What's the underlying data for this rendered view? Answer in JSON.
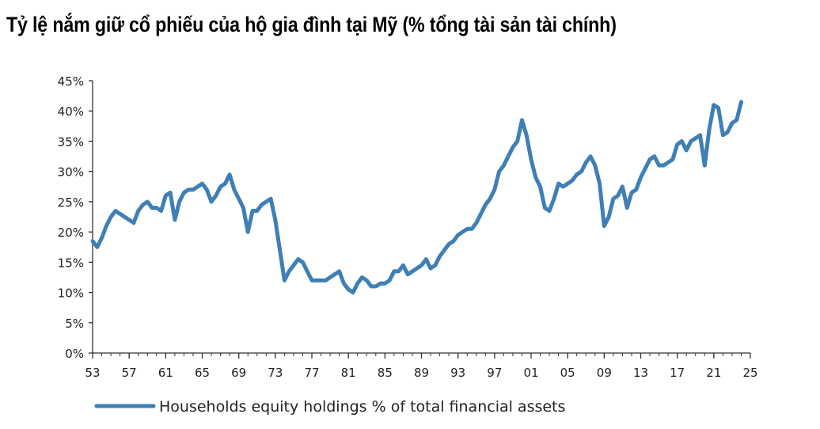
{
  "chart_data": {
    "type": "line",
    "title": "Tỷ lệ nắm giữ cổ phiếu của hộ gia đình tại Mỹ (% tổng tài sản tài chính)",
    "xlabel": "",
    "ylabel": "",
    "xlim": [
      1953,
      2025
    ],
    "ylim": [
      0,
      45
    ],
    "x_ticks": [
      1953,
      1957,
      1961,
      1965,
      1969,
      1973,
      1977,
      1981,
      1985,
      1989,
      1993,
      1997,
      2001,
      2005,
      2009,
      2013,
      2017,
      2021,
      2025
    ],
    "x_tick_labels": [
      "53",
      "57",
      "61",
      "65",
      "69",
      "73",
      "77",
      "81",
      "85",
      "89",
      "93",
      "97",
      "01",
      "05",
      "09",
      "13",
      "17",
      "21",
      "25"
    ],
    "y_ticks": [
      0,
      5,
      10,
      15,
      20,
      25,
      30,
      35,
      40,
      45
    ],
    "y_tick_labels": [
      "0%",
      "5%",
      "10%",
      "15%",
      "20%",
      "25%",
      "30%",
      "35%",
      "40%",
      "45%"
    ],
    "grid": false,
    "legend_position": "bottom-left",
    "color": "#3f7fb5",
    "series": [
      {
        "name": "Households equity holdings % of total financial assets",
        "x": [
          1953.0,
          1953.5,
          1954.0,
          1954.5,
          1955.0,
          1955.5,
          1956.0,
          1956.5,
          1957.0,
          1957.5,
          1958.0,
          1958.5,
          1959.0,
          1959.5,
          1960.0,
          1960.5,
          1961.0,
          1961.5,
          1962.0,
          1962.5,
          1963.0,
          1963.5,
          1964.0,
          1964.5,
          1965.0,
          1965.5,
          1966.0,
          1966.5,
          1967.0,
          1967.5,
          1968.0,
          1968.5,
          1969.0,
          1969.5,
          1970.0,
          1970.5,
          1971.0,
          1971.5,
          1972.0,
          1972.5,
          1973.0,
          1973.5,
          1974.0,
          1974.5,
          1975.0,
          1975.5,
          1976.0,
          1976.5,
          1977.0,
          1977.5,
          1978.0,
          1978.5,
          1979.0,
          1979.5,
          1980.0,
          1980.5,
          1981.0,
          1981.5,
          1982.0,
          1982.5,
          1983.0,
          1983.5,
          1984.0,
          1984.5,
          1985.0,
          1985.5,
          1986.0,
          1986.5,
          1987.0,
          1987.5,
          1988.0,
          1988.5,
          1989.0,
          1989.5,
          1990.0,
          1990.5,
          1991.0,
          1991.5,
          1992.0,
          1992.5,
          1993.0,
          1993.5,
          1994.0,
          1994.5,
          1995.0,
          1995.5,
          1996.0,
          1996.5,
          1997.0,
          1997.5,
          1998.0,
          1998.5,
          1999.0,
          1999.5,
          2000.0,
          2000.5,
          2001.0,
          2001.5,
          2002.0,
          2002.5,
          2003.0,
          2003.5,
          2004.0,
          2004.5,
          2005.0,
          2005.5,
          2006.0,
          2006.5,
          2007.0,
          2007.5,
          2008.0,
          2008.5,
          2009.0,
          2009.5,
          2010.0,
          2010.5,
          2011.0,
          2011.5,
          2012.0,
          2012.5,
          2013.0,
          2013.5,
          2014.0,
          2014.5,
          2015.0,
          2015.5,
          2016.0,
          2016.5,
          2017.0,
          2017.5,
          2018.0,
          2018.5,
          2019.0,
          2019.5,
          2020.0,
          2020.5,
          2021.0,
          2021.5,
          2022.0,
          2022.5,
          2023.0,
          2023.5,
          2024.0
        ],
        "values": [
          18.5,
          17.5,
          19.0,
          21.0,
          22.5,
          23.5,
          23.0,
          22.5,
          22.0,
          21.5,
          23.5,
          24.5,
          25.0,
          24.0,
          24.0,
          23.5,
          26.0,
          26.5,
          22.0,
          25.0,
          26.5,
          27.0,
          27.0,
          27.5,
          28.0,
          27.0,
          25.0,
          26.0,
          27.5,
          28.0,
          29.5,
          27.0,
          25.5,
          24.0,
          20.0,
          23.5,
          23.5,
          24.5,
          25.0,
          25.5,
          22.0,
          17.0,
          12.0,
          13.5,
          14.5,
          15.5,
          15.0,
          13.5,
          12.0,
          12.0,
          12.0,
          12.0,
          12.5,
          13.0,
          13.5,
          11.5,
          10.5,
          10.0,
          11.5,
          12.5,
          12.0,
          11.0,
          11.0,
          11.5,
          11.5,
          12.0,
          13.5,
          13.5,
          14.5,
          13.0,
          13.5,
          14.0,
          14.5,
          15.5,
          14.0,
          14.5,
          16.0,
          17.0,
          18.0,
          18.5,
          19.5,
          20.0,
          20.5,
          20.5,
          21.5,
          23.0,
          24.5,
          25.5,
          27.0,
          30.0,
          31.0,
          32.5,
          34.0,
          35.0,
          38.5,
          36.0,
          32.0,
          29.0,
          27.5,
          24.0,
          23.5,
          25.5,
          28.0,
          27.5,
          28.0,
          28.5,
          29.5,
          30.0,
          31.5,
          32.5,
          31.0,
          28.0,
          21.0,
          22.5,
          25.5,
          26.0,
          27.5,
          24.0,
          26.5,
          27.0,
          29.0,
          30.5,
          32.0,
          32.5,
          31.0,
          31.0,
          31.5,
          32.0,
          34.5,
          35.0,
          33.5,
          35.0,
          35.5,
          36.0,
          31.0,
          37.0,
          41.0,
          40.5,
          36.0,
          36.5,
          38.0,
          38.5,
          41.5
        ]
      }
    ]
  }
}
